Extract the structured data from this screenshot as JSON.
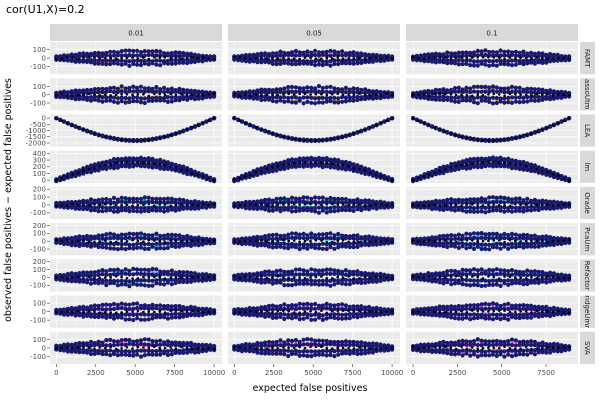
{
  "chart_data": {
    "type": "scatter",
    "title": "cor(U1,X)=0.2",
    "xlabel": "expected false positives",
    "ylabel": "observed false positives − expected false positives",
    "columns": [
      "0.01",
      "0.05",
      "0.1"
    ],
    "rows": [
      {
        "label": "FAMT",
        "color": "#F8766D",
        "yticks": [
          -100,
          0,
          100
        ],
        "ylim": [
          -190,
          190
        ],
        "shape": "flat",
        "amp": 70,
        "curve": 0
      },
      {
        "label": "assoUtm",
        "color": "#D39200",
        "yticks": [
          -100,
          0,
          100
        ],
        "ylim": [
          -190,
          200
        ],
        "shape": "flat",
        "amp": 80,
        "curve": 0
      },
      {
        "label": "LEA",
        "color": "#93AA00",
        "yticks": [
          -2000,
          -1500,
          -1000,
          -500,
          0
        ],
        "ylim": [
          -2300,
          300
        ],
        "shape": "valley",
        "amp": 30,
        "curve": -1900
      },
      {
        "label": "lm",
        "color": "#00BA38",
        "yticks": [
          0,
          100,
          200,
          300,
          400
        ],
        "ylim": [
          -40,
          440
        ],
        "shape": "hill",
        "amp": 55,
        "curve": 270
      },
      {
        "label": "Orade",
        "color": "#00C19F",
        "yticks": [
          -100,
          0,
          100,
          200
        ],
        "ylim": [
          -180,
          230
        ],
        "shape": "flat",
        "amp": 75,
        "curve": 0
      },
      {
        "label": "PcaUm",
        "color": "#00B9E3",
        "yticks": [
          -100,
          0,
          100,
          200
        ],
        "ylim": [
          -180,
          230
        ],
        "shape": "flat",
        "amp": 80,
        "curve": 0
      },
      {
        "label": "Refactor",
        "color": "#619CFF",
        "yticks": [
          -100,
          0,
          100,
          200
        ],
        "ylim": [
          -180,
          230
        ],
        "shape": "flat",
        "amp": 85,
        "curve": 0
      },
      {
        "label": "ridgeUmr",
        "color": "#DB72FB",
        "yticks": [
          -100,
          0,
          100
        ],
        "ylim": [
          -190,
          190
        ],
        "shape": "flat",
        "amp": 75,
        "curve": 0
      },
      {
        "label": "SVA",
        "color": "#FF61C3",
        "yticks": [
          -100,
          0,
          100
        ],
        "ylim": [
          -190,
          190
        ],
        "shape": "flat",
        "amp": 80,
        "curve": 0
      }
    ],
    "x_ranges": [
      [
        0,
        10000
      ],
      [
        0,
        10000
      ],
      [
        0,
        8800
      ]
    ],
    "xticks": [
      [
        0,
        2500,
        5000,
        7500,
        10000
      ],
      [
        0,
        2500,
        5000,
        7500,
        10000
      ],
      [
        0,
        2500,
        5000,
        7500
      ]
    ],
    "xlim": [
      [
        -400,
        10500
      ],
      [
        -400,
        10500
      ],
      [
        -400,
        9300
      ]
    ],
    "point_color": "#191970",
    "mean_color": "#000000",
    "grid": true,
    "legend": "none"
  }
}
